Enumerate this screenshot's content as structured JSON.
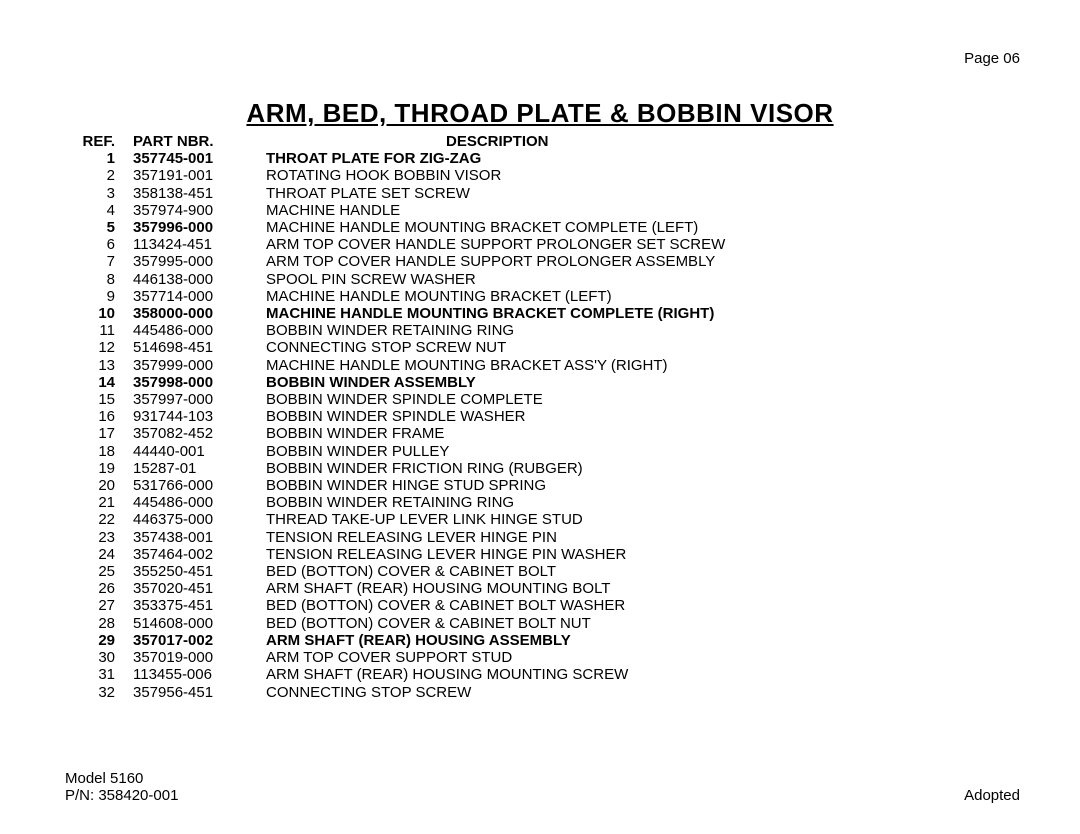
{
  "page_label": "Page 06",
  "title": "ARM, BED, THROAD PLATE & BOBBIN VISOR",
  "headers": {
    "ref": "REF.",
    "part": "PART NBR.",
    "desc": "DESCRIPTION"
  },
  "rows": [
    {
      "ref": "1",
      "part": "357745-001",
      "desc": "THROAT PLATE FOR ZIG-ZAG",
      "bold": true
    },
    {
      "ref": "2",
      "part": "357191-001",
      "desc": "ROTATING HOOK BOBBIN VISOR",
      "bold": false
    },
    {
      "ref": "3",
      "part": "358138-451",
      "desc": "THROAT PLATE SET SCREW",
      "bold": false
    },
    {
      "ref": "4",
      "part": "357974-900",
      "desc": "MACHINE HANDLE",
      "bold": false
    },
    {
      "ref": "5",
      "part": "357996-000",
      "desc": "MACHINE HANDLE MOUNTING BRACKET COMPLETE (LEFT)",
      "bold": false,
      "ref_bold": true,
      "part_bold": true
    },
    {
      "ref": "6",
      "part": "113424-451",
      "desc": "ARM TOP COVER HANDLE SUPPORT PROLONGER SET SCREW",
      "bold": false
    },
    {
      "ref": "7",
      "part": "357995-000",
      "desc": "ARM TOP COVER HANDLE SUPPORT PROLONGER ASSEMBLY",
      "bold": false
    },
    {
      "ref": "8",
      "part": "446138-000",
      "desc": "SPOOL PIN SCREW WASHER",
      "bold": false
    },
    {
      "ref": "9",
      "part": "357714-000",
      "desc": "MACHINE HANDLE MOUNTING BRACKET (LEFT)",
      "bold": false
    },
    {
      "ref": "10",
      "part": "358000-000",
      "desc": "MACHINE HANDLE MOUNTING BRACKET COMPLETE (RIGHT)",
      "bold": true
    },
    {
      "ref": "11",
      "part": "445486-000",
      "desc": "BOBBIN WINDER RETAINING RING",
      "bold": false
    },
    {
      "ref": "12",
      "part": "514698-451",
      "desc": "CONNECTING STOP SCREW NUT",
      "bold": false
    },
    {
      "ref": "13",
      "part": "357999-000",
      "desc": "MACHINE HANDLE MOUNTING BRACKET ASS'Y (RIGHT)",
      "bold": false
    },
    {
      "ref": "14",
      "part": "357998-000",
      "desc": "BOBBIN WINDER ASSEMBLY",
      "bold": true
    },
    {
      "ref": "15",
      "part": "357997-000",
      "desc": "BOBBIN WINDER SPINDLE COMPLETE",
      "bold": false
    },
    {
      "ref": "16",
      "part": "931744-103",
      "desc": "BOBBIN WINDER SPINDLE WASHER",
      "bold": false
    },
    {
      "ref": "17",
      "part": "357082-452",
      "desc": "BOBBIN WINDER FRAME",
      "bold": false
    },
    {
      "ref": "18",
      "part": "44440-001",
      "desc": "BOBBIN WINDER PULLEY",
      "bold": false
    },
    {
      "ref": "19",
      "part": "15287-01",
      "desc": "BOBBIN WINDER FRICTION RING (RUBGER)",
      "bold": false
    },
    {
      "ref": "20",
      "part": "531766-000",
      "desc": "BOBBIN WINDER HINGE STUD SPRING",
      "bold": false
    },
    {
      "ref": "21",
      "part": "445486-000",
      "desc": "BOBBIN WINDER RETAINING RING",
      "bold": false
    },
    {
      "ref": "22",
      "part": "446375-000",
      "desc": "THREAD TAKE-UP LEVER LINK HINGE STUD",
      "bold": false
    },
    {
      "ref": "23",
      "part": "357438-001",
      "desc": "TENSION RELEASING LEVER HINGE PIN",
      "bold": false
    },
    {
      "ref": "24",
      "part": "357464-002",
      "desc": "TENSION RELEASING LEVER HINGE PIN WASHER",
      "bold": false
    },
    {
      "ref": "25",
      "part": "355250-451",
      "desc": "BED (BOTTON) COVER & CABINET BOLT",
      "bold": false
    },
    {
      "ref": "26",
      "part": "357020-451",
      "desc": "ARM SHAFT (REAR) HOUSING MOUNTING BOLT",
      "bold": false
    },
    {
      "ref": "27",
      "part": "353375-451",
      "desc": "BED (BOTTON) COVER & CABINET BOLT WASHER",
      "bold": false
    },
    {
      "ref": "28",
      "part": "514608-000",
      "desc": "BED (BOTTON) COVER & CABINET BOLT NUT",
      "bold": false
    },
    {
      "ref": "29",
      "part": "357017-002",
      "desc": "ARM SHAFT (REAR) HOUSING ASSEMBLY",
      "bold": true
    },
    {
      "ref": "30",
      "part": "357019-000",
      "desc": "ARM TOP COVER SUPPORT STUD",
      "bold": false
    },
    {
      "ref": "31",
      "part": "113455-006",
      "desc": "ARM SHAFT (REAR) HOUSING MOUNTING SCREW",
      "bold": false
    },
    {
      "ref": "32",
      "part": "357956-451",
      "desc": "CONNECTING STOP SCREW",
      "bold": false
    }
  ],
  "footer": {
    "model": "Model 5160",
    "pn": "P/N: 358420-001",
    "status": "Adopted"
  }
}
